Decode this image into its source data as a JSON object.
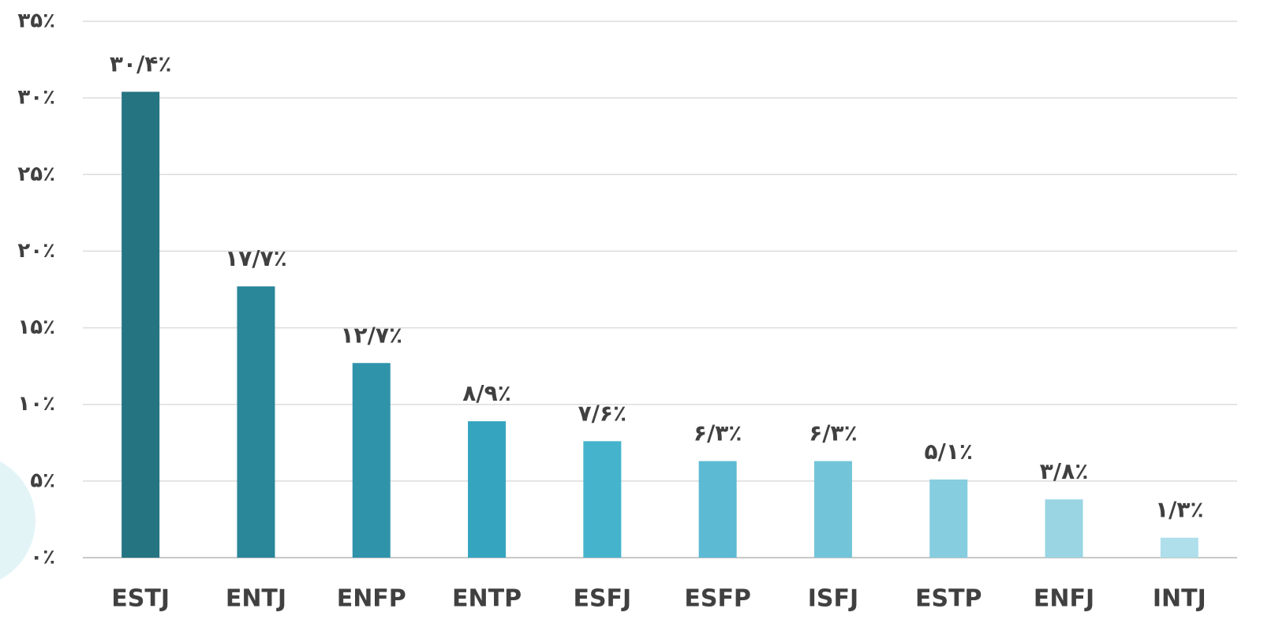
{
  "chart_data": {
    "type": "bar",
    "categories": [
      "ESTJ",
      "ENTJ",
      "ENFP",
      "ENTP",
      "ESFJ",
      "ESFP",
      "ISFJ",
      "ESTP",
      "ENFJ",
      "INTJ"
    ],
    "values": [
      30.4,
      17.7,
      12.7,
      8.9,
      7.6,
      6.3,
      6.3,
      5.1,
      3.8,
      1.3
    ],
    "value_labels": [
      "۳۰/۴٪",
      "۱۷/۷٪",
      "۱۲/۷٪",
      "۸/۹٪",
      "۷/۶٪",
      "۶/۳٪",
      "۶/۳٪",
      "۵/۱٪",
      "۳/۸٪",
      "۱/۳٪"
    ],
    "colors": [
      "#247482",
      "#2a8699",
      "#2f93aa",
      "#35a5bf",
      "#46b3cd",
      "#5cbad3",
      "#72c5d9",
      "#85cddf",
      "#99d5e3",
      "#aedfea"
    ],
    "ylim": [
      0,
      35
    ],
    "yticks": [
      {
        "value": 0,
        "label": "۰٪"
      },
      {
        "value": 5,
        "label": "۵٪"
      },
      {
        "value": 10,
        "label": "۱۰٪"
      },
      {
        "value": 15,
        "label": "۱۵٪"
      },
      {
        "value": 20,
        "label": "۲۰٪"
      },
      {
        "value": 25,
        "label": "۲۵٪"
      },
      {
        "value": 30,
        "label": "۳۰٪"
      },
      {
        "value": 35,
        "label": "۳۵٪"
      }
    ],
    "grid": true
  }
}
